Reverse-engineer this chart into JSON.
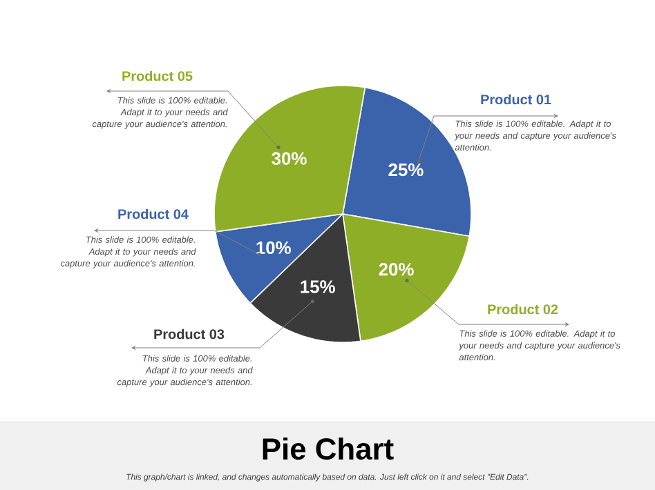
{
  "chart_data": {
    "type": "pie",
    "title": "Pie Chart",
    "categories": [
      "Product 01",
      "Product 02",
      "Product 03",
      "Product 04",
      "Product 05"
    ],
    "values": [
      25,
      20,
      15,
      10,
      30
    ],
    "value_labels": [
      "25%",
      "20%",
      "15%",
      "10%",
      "30%"
    ],
    "colors": [
      "#3b63ab",
      "#8fae27",
      "#3a3a3a",
      "#3b63ab",
      "#8fae27"
    ],
    "annotations": [
      "This slide is 100% editable.  Adapt it to your needs and capture your audience's attention.",
      "This slide is 100% editable.  Adapt it to your needs and capture your audience's attention.",
      "This slide is 100% editable.  Adapt it to your needs and capture your audience's attention.",
      "This slide is 100% editable.  Adapt it to your needs and capture your audience's attention.",
      "This slide is 100% editable.  Adapt it to your needs and capture your audience's attention.",
      "This graph/chart is linked, and changes automatically based on data.  Just left click on it and select \"Edit Data\"."
    ]
  }
}
